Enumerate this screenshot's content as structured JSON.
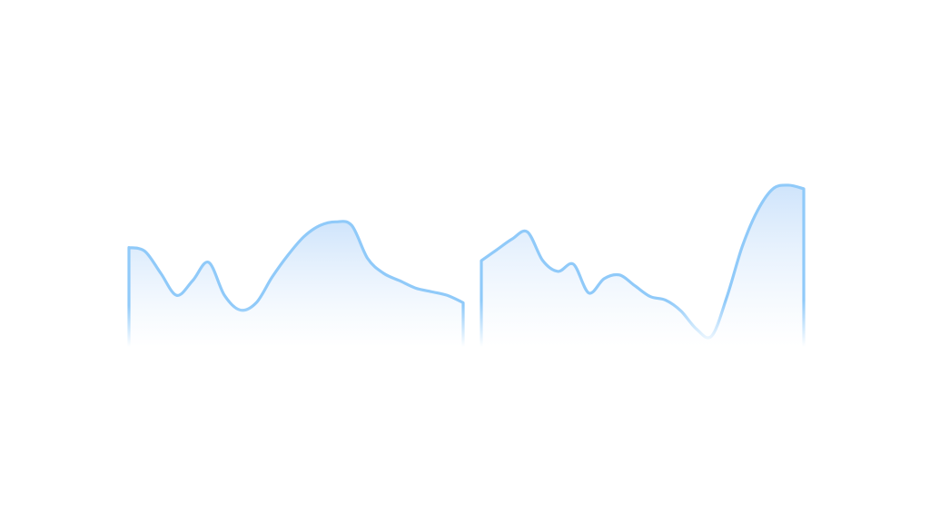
{
  "chart_data": [
    {
      "type": "area",
      "title": "",
      "xlabel": "",
      "ylabel": "",
      "grid": false,
      "x": [
        0,
        1,
        2,
        3,
        4,
        5,
        6,
        7,
        8,
        9,
        10,
        11,
        12,
        13,
        14,
        15,
        16,
        17,
        18,
        19,
        20,
        21
      ],
      "series": [
        {
          "values": [
            27,
            26,
            20,
            14,
            18,
            23,
            14,
            10,
            12,
            19,
            25,
            30,
            33,
            34,
            33,
            24,
            20,
            18,
            16,
            15,
            14,
            12
          ]
        }
      ],
      "xlim": [
        0,
        21
      ],
      "ylim": [
        0,
        40
      ],
      "colors": {
        "line": "#90caf9",
        "fill_top": "#cfe4fb",
        "fill_bottom": "#ffffff"
      }
    },
    {
      "type": "area",
      "title": "",
      "xlabel": "",
      "ylabel": "",
      "grid": false,
      "x": [
        0,
        1,
        2,
        3,
        4,
        5,
        6,
        7,
        8,
        9,
        10,
        11,
        12,
        13,
        14,
        15,
        16,
        17,
        18,
        19,
        20,
        21
      ],
      "series": [
        {
          "values": [
            24,
            27,
            30,
            32,
            24,
            21,
            23,
            15,
            19,
            20,
            17,
            14,
            13,
            10,
            5,
            3,
            14,
            28,
            38,
            44,
            45,
            44
          ]
        }
      ],
      "xlim": [
        0,
        21
      ],
      "ylim": [
        0,
        46
      ],
      "colors": {
        "line": "#90caf9",
        "fill_top": "#cfe4fb",
        "fill_bottom": "#ffffff"
      }
    }
  ]
}
